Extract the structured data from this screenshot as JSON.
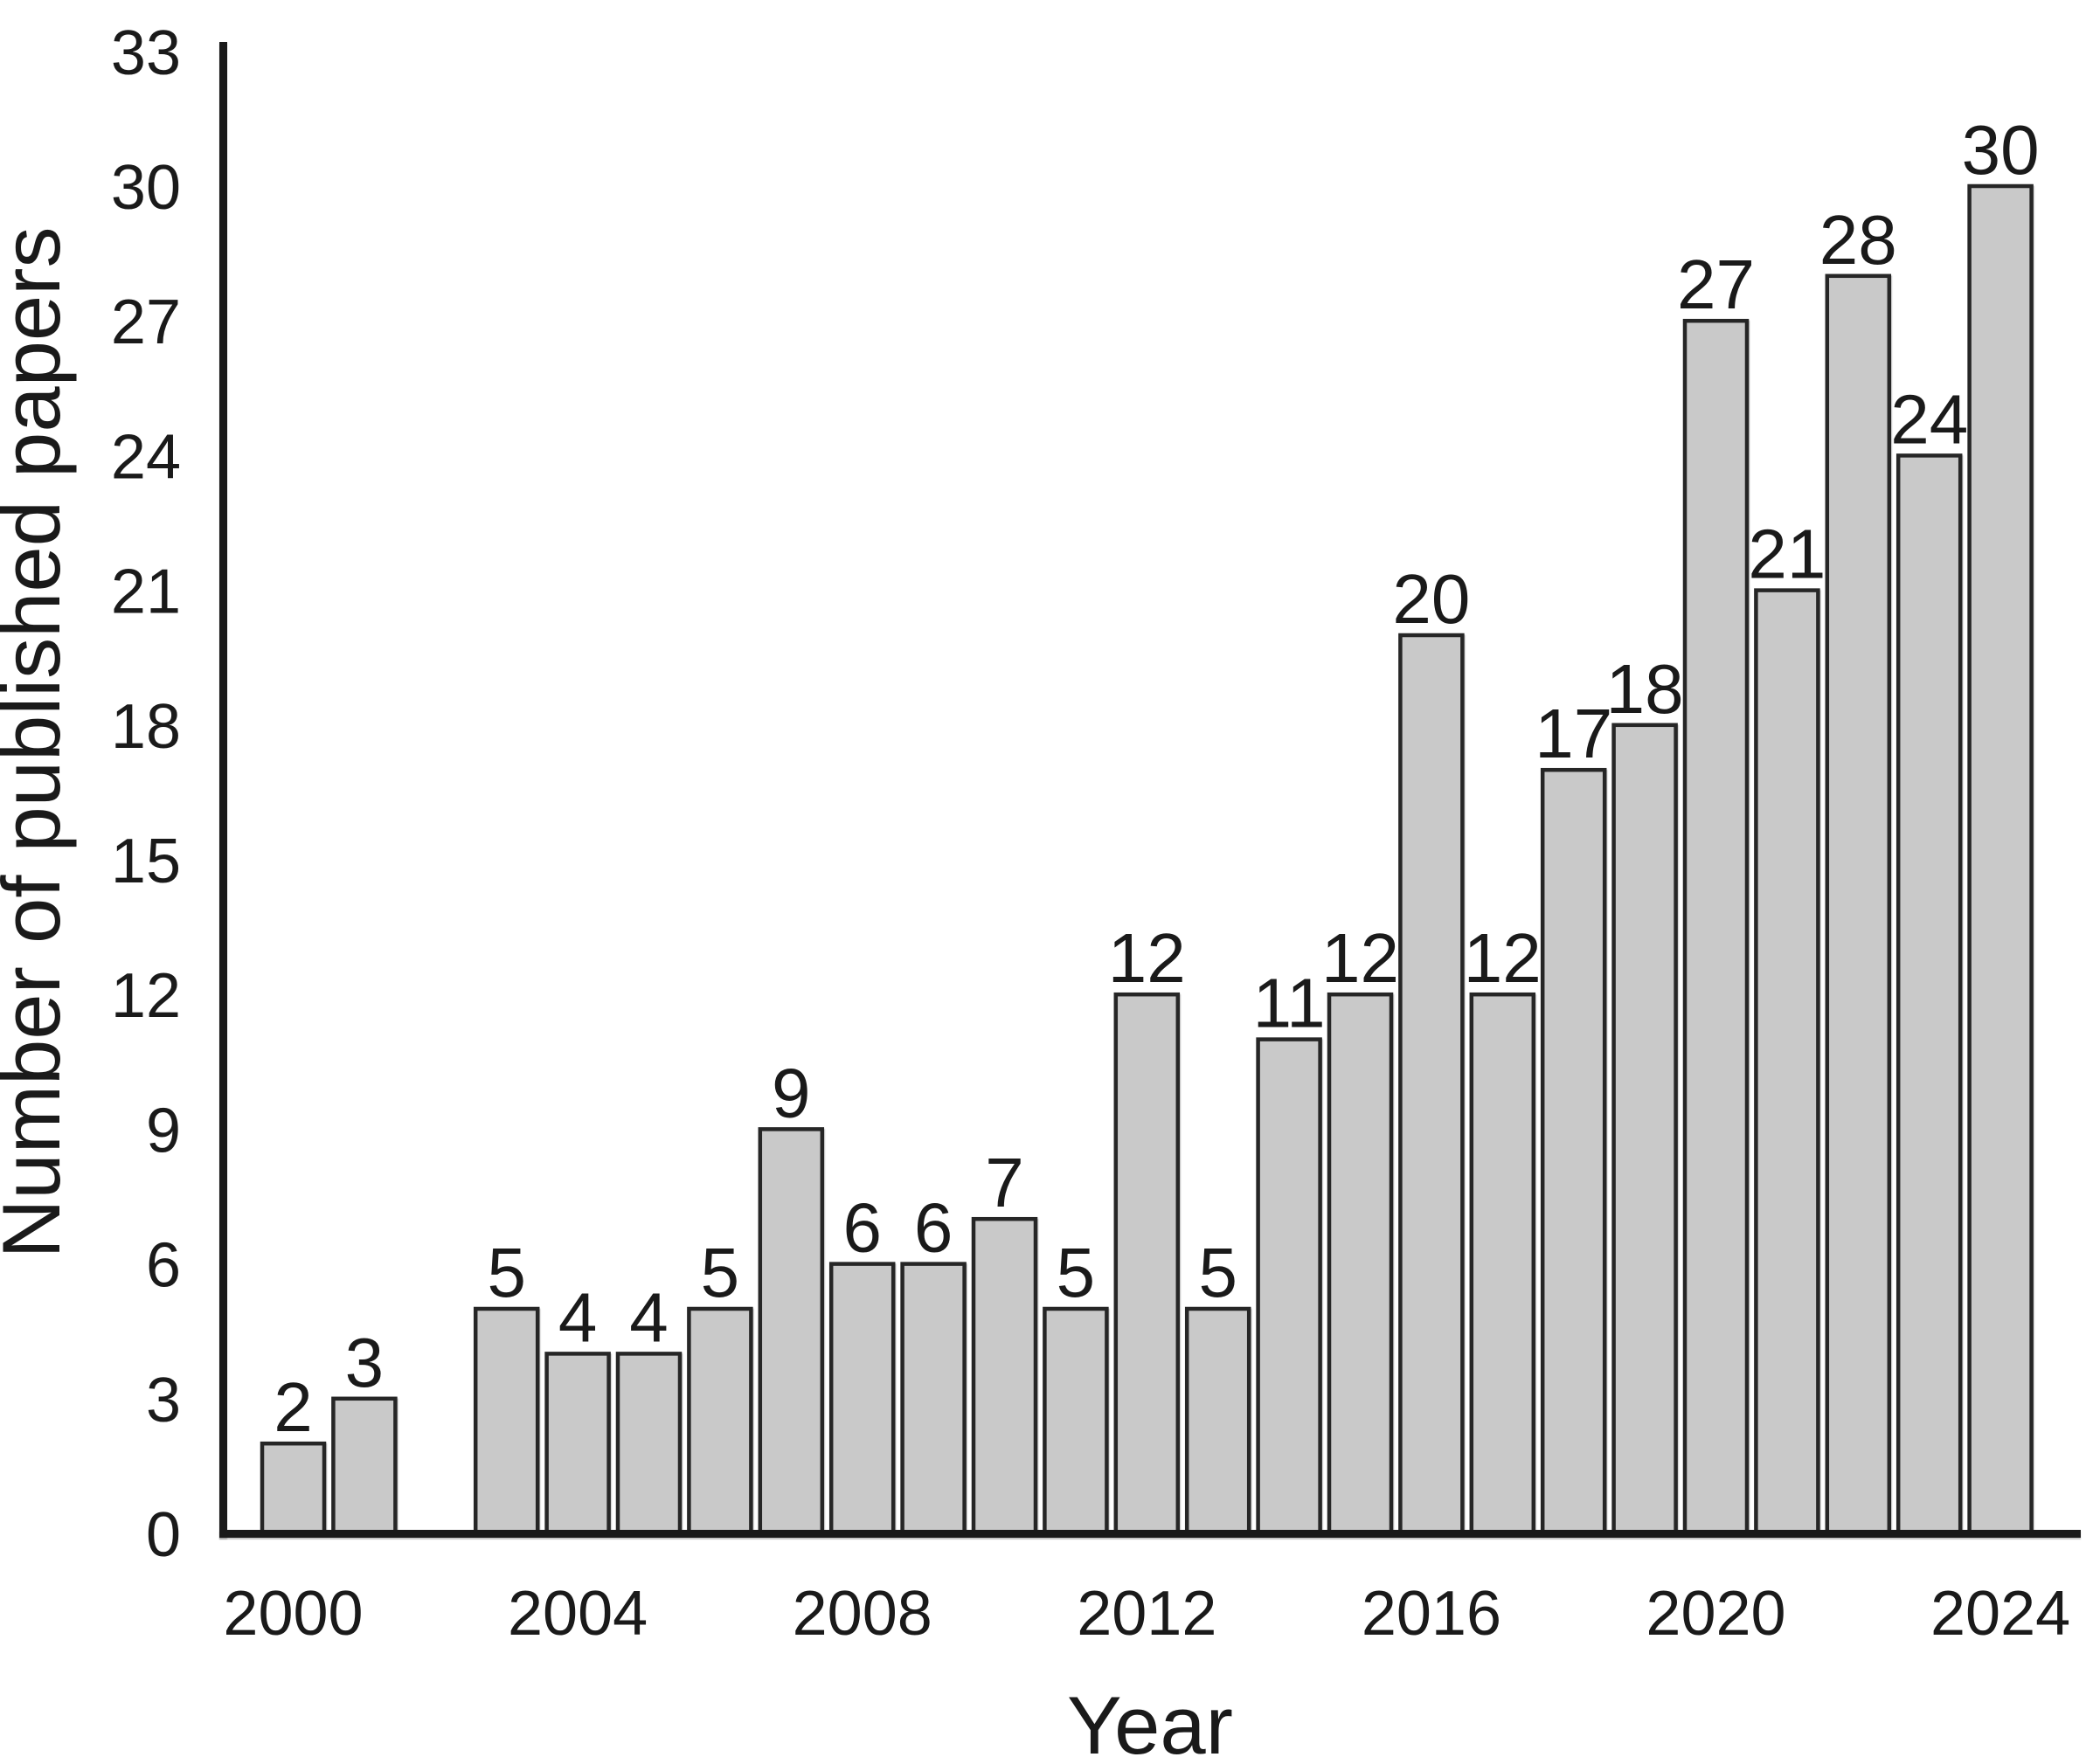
{
  "chart_data": {
    "type": "bar",
    "title": "",
    "xlabel": "Year",
    "ylabel": "Number of published papers",
    "categories": [
      2000,
      2001,
      2002,
      2003,
      2004,
      2005,
      2006,
      2007,
      2008,
      2009,
      2010,
      2011,
      2012,
      2013,
      2014,
      2015,
      2016,
      2017,
      2018,
      2019,
      2020,
      2021,
      2022,
      2023,
      2024
    ],
    "values": [
      2,
      3,
      0,
      5,
      4,
      4,
      5,
      9,
      6,
      6,
      7,
      5,
      12,
      5,
      11,
      12,
      20,
      12,
      17,
      18,
      27,
      21,
      28,
      24,
      30
    ],
    "value_labels_shown": true,
    "y_ticks": [
      0,
      3,
      6,
      9,
      12,
      15,
      18,
      21,
      24,
      27,
      30,
      33
    ],
    "x_ticks": [
      2000,
      2004,
      2008,
      2012,
      2016,
      2020,
      2024
    ],
    "ylim": [
      0,
      33
    ],
    "grid": false,
    "legend": null,
    "bars_without_bar": [
      2002
    ],
    "bar_fill": "#c9c9c9",
    "bar_stroke": "#262626",
    "axis_color": "#1a1a1a",
    "text_color": "#1a1a1a",
    "background": "#ffffff"
  }
}
